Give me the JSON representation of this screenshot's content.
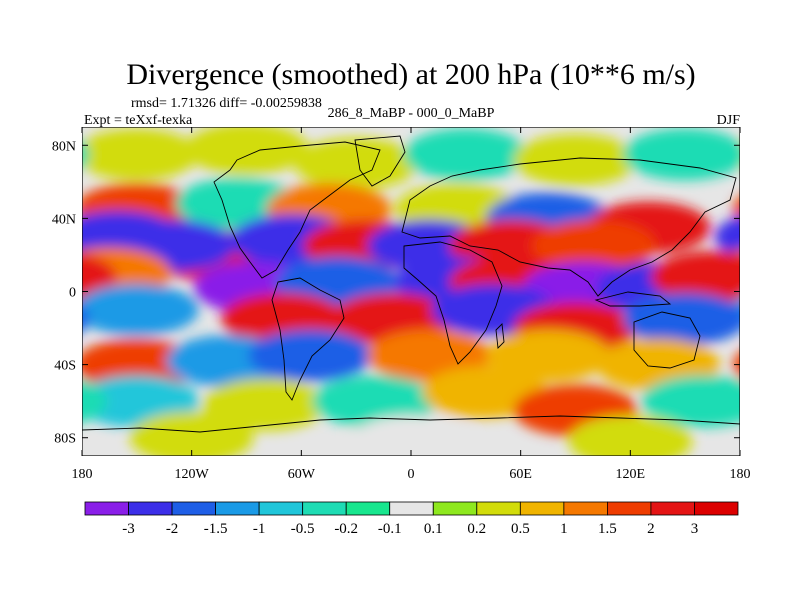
{
  "chart_data": {
    "type": "heatmap",
    "title": "Divergence (smoothed) at 200 hPa (10**6 m/s)",
    "rmsd_line": "rmsd= 1.71326 diff= -0.00259838",
    "experiment": "Expt = teXxf-texka",
    "subtitle": "286_8_MaBP - 000_0_MaBP",
    "season": "DJF",
    "xlabel": "",
    "ylabel": "",
    "xlim": [
      -180,
      180
    ],
    "ylim": [
      -90,
      90
    ],
    "x_ticks": [
      {
        "value": -180,
        "label": "180"
      },
      {
        "value": -120,
        "label": "120W"
      },
      {
        "value": -60,
        "label": "60W"
      },
      {
        "value": 0,
        "label": "0"
      },
      {
        "value": 60,
        "label": "60E"
      },
      {
        "value": 120,
        "label": "120E"
      },
      {
        "value": 180,
        "label": "180"
      }
    ],
    "y_ticks": [
      {
        "value": 80,
        "label": "80N"
      },
      {
        "value": 40,
        "label": "40N"
      },
      {
        "value": 0,
        "label": "0"
      },
      {
        "value": -40,
        "label": "40S"
      },
      {
        "value": -80,
        "label": "80S"
      }
    ],
    "colorbar": {
      "levels": [
        "-3",
        "-2",
        "-1.5",
        "-1",
        "-0.5",
        "-0.2",
        "-0.1",
        "0.1",
        "0.2",
        "0.5",
        "1",
        "1.5",
        "2",
        "3"
      ],
      "colors": [
        "#8a1ee8",
        "#3c2ee8",
        "#1e5ee6",
        "#1a9ae6",
        "#20c6da",
        "#1edcb4",
        "#18e68e",
        "#e6e6e6",
        "#8ee81e",
        "#d2dc0a",
        "#f0b400",
        "#f57800",
        "#ee3c00",
        "#e41414",
        "#dc0000"
      ]
    },
    "cells": [
      {
        "lon": -150,
        "lat": 75,
        "value": 0.3
      },
      {
        "lon": -90,
        "lat": 78,
        "value": 0.3
      },
      {
        "lon": -30,
        "lat": 70,
        "value": 0.2
      },
      {
        "lon": 30,
        "lat": 75,
        "value": -0.4
      },
      {
        "lon": 90,
        "lat": 72,
        "value": 0.3
      },
      {
        "lon": 150,
        "lat": 75,
        "value": -0.3
      },
      {
        "lon": -150,
        "lat": 45,
        "value": 1.8
      },
      {
        "lon": -95,
        "lat": 48,
        "value": -0.5
      },
      {
        "lon": -45,
        "lat": 45,
        "value": 1.2
      },
      {
        "lon": 25,
        "lat": 45,
        "value": 0.4
      },
      {
        "lon": 75,
        "lat": 40,
        "value": -1.8
      },
      {
        "lon": 130,
        "lat": 35,
        "value": 2.6
      },
      {
        "lon": -160,
        "lat": 30,
        "value": -2.2
      },
      {
        "lon": -110,
        "lat": 20,
        "value": 2.5
      },
      {
        "lon": -130,
        "lat": 25,
        "value": -2.6
      },
      {
        "lon": -65,
        "lat": 28,
        "value": -2.8
      },
      {
        "lon": -25,
        "lat": 25,
        "value": 2.0
      },
      {
        "lon": 10,
        "lat": 25,
        "value": -2.4
      },
      {
        "lon": 55,
        "lat": 25,
        "value": 2.4
      },
      {
        "lon": 100,
        "lat": 25,
        "value": 1.6
      },
      {
        "lon": -165,
        "lat": 10,
        "value": 1.4
      },
      {
        "lon": -85,
        "lat": 2,
        "value": -3.2
      },
      {
        "lon": -40,
        "lat": 5,
        "value": -1.6
      },
      {
        "lon": 25,
        "lat": 5,
        "value": -2.8
      },
      {
        "lon": 55,
        "lat": 5,
        "value": 2.6
      },
      {
        "lon": 95,
        "lat": 2,
        "value": -3.2
      },
      {
        "lon": 135,
        "lat": 2,
        "value": -2.6
      },
      {
        "lon": 165,
        "lat": 8,
        "value": 2.0
      },
      {
        "lon": -150,
        "lat": -10,
        "value": -1.4
      },
      {
        "lon": -70,
        "lat": -15,
        "value": 2.4
      },
      {
        "lon": -10,
        "lat": -15,
        "value": 2.8
      },
      {
        "lon": 45,
        "lat": -10,
        "value": -2.6
      },
      {
        "lon": 90,
        "lat": -20,
        "value": 2.8
      },
      {
        "lon": 150,
        "lat": -15,
        "value": -2.0
      },
      {
        "lon": -150,
        "lat": -40,
        "value": 1.6
      },
      {
        "lon": -100,
        "lat": -38,
        "value": -1.2
      },
      {
        "lon": -55,
        "lat": -35,
        "value": -1.6
      },
      {
        "lon": 10,
        "lat": -35,
        "value": 1.4
      },
      {
        "lon": 75,
        "lat": -35,
        "value": 0.8
      },
      {
        "lon": 135,
        "lat": -40,
        "value": 0.6
      },
      {
        "lon": -150,
        "lat": -60,
        "value": -0.6
      },
      {
        "lon": -80,
        "lat": -62,
        "value": 0.4
      },
      {
        "lon": -20,
        "lat": -60,
        "value": -0.5
      },
      {
        "lon": 40,
        "lat": -55,
        "value": 0.7
      },
      {
        "lon": 90,
        "lat": -65,
        "value": 1.6
      },
      {
        "lon": 160,
        "lat": -60,
        "value": -0.4
      },
      {
        "lon": -120,
        "lat": -80,
        "value": 0.3
      },
      {
        "lon": 0,
        "lat": -82,
        "value": 0.0
      },
      {
        "lon": 120,
        "lat": -82,
        "value": 0.3
      }
    ]
  }
}
